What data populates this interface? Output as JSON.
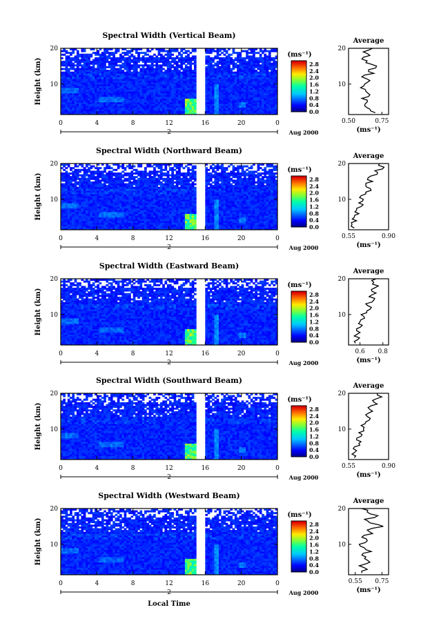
{
  "figure": {
    "x_axis_label": "Local Time",
    "date_label": "Aug 2000",
    "day_marker": "2"
  },
  "chart_data": [
    {
      "type": "heatmap",
      "title": "Spectral Width (Vertical Beam)",
      "xlabel": "",
      "ylabel": "Height (km)",
      "xlim": [
        0,
        24
      ],
      "ylim": [
        1.5,
        20
      ],
      "xticks": [
        "0",
        "4",
        "8",
        "12",
        "16",
        "20",
        "0"
      ],
      "yticks": [
        "10",
        "20"
      ],
      "colorbar": {
        "unit": "(ms⁻¹)",
        "range": [
          0.0,
          3.0
        ],
        "ticks": [
          "2.8",
          "2.4",
          "2.0",
          "1.6",
          "1.2",
          "0.8",
          "0.4",
          "0.0"
        ]
      },
      "gap": [
        14.8,
        15.8
      ],
      "profile": {
        "title": "Average",
        "xlabel": "(ms⁻¹)",
        "xlim": [
          0.5,
          0.8
        ],
        "xticks": [
          "0.50",
          "0.75"
        ],
        "yticks": [
          "10",
          "20"
        ],
        "heights": [
          2,
          3,
          4,
          5,
          6,
          7,
          8,
          9,
          10,
          11,
          12,
          13,
          14,
          15,
          16,
          17,
          18,
          19,
          20
        ],
        "values": [
          0.7,
          0.66,
          0.62,
          0.64,
          0.6,
          0.66,
          0.63,
          0.59,
          0.62,
          0.66,
          0.6,
          0.69,
          0.65,
          0.71,
          0.63,
          0.6,
          0.66,
          0.61,
          0.68
        ]
      }
    },
    {
      "type": "heatmap",
      "title": "Spectral Width (Northward Beam)",
      "xlabel": "",
      "ylabel": "Height (km)",
      "xlim": [
        0,
        24
      ],
      "ylim": [
        1.5,
        20
      ],
      "xticks": [
        "0",
        "4",
        "8",
        "12",
        "16",
        "20",
        "0"
      ],
      "yticks": [
        "10",
        "20"
      ],
      "colorbar": {
        "unit": "(ms⁻¹)",
        "range": [
          0.0,
          3.0
        ],
        "ticks": [
          "2.8",
          "2.4",
          "2.0",
          "1.6",
          "1.2",
          "0.8",
          "0.4",
          "0.0"
        ]
      },
      "gap": [
        14.8,
        15.8
      ],
      "profile": {
        "title": "Average",
        "xlabel": "(ms⁻¹)",
        "xlim": [
          0.55,
          0.9
        ],
        "xticks": [
          "0.55",
          "0.90"
        ],
        "yticks": [
          "10",
          "20"
        ],
        "heights": [
          2,
          3,
          4,
          5,
          6,
          7,
          8,
          9,
          10,
          11,
          12,
          13,
          14,
          15,
          16,
          17,
          18,
          19,
          20
        ],
        "values": [
          0.6,
          0.58,
          0.62,
          0.6,
          0.64,
          0.62,
          0.66,
          0.64,
          0.68,
          0.66,
          0.7,
          0.74,
          0.7,
          0.76,
          0.72,
          0.8,
          0.78,
          0.86,
          0.82
        ]
      }
    },
    {
      "type": "heatmap",
      "title": "Spectral Width (Eastward Beam)",
      "xlabel": "",
      "ylabel": "Height (km)",
      "xlim": [
        0,
        24
      ],
      "ylim": [
        1.5,
        20
      ],
      "xticks": [
        "0",
        "4",
        "8",
        "12",
        "16",
        "20",
        "0"
      ],
      "yticks": [
        "10",
        "20"
      ],
      "colorbar": {
        "unit": "(ms⁻¹)",
        "range": [
          0.0,
          3.0
        ],
        "ticks": [
          "2.8",
          "2.4",
          "2.0",
          "1.6",
          "1.2",
          "0.8",
          "0.4",
          "0.0"
        ]
      },
      "gap": [
        14.8,
        15.8
      ],
      "profile": {
        "title": "Average",
        "xlabel": "(ms⁻¹)",
        "xlim": [
          0.5,
          0.85
        ],
        "xticks": [
          "0.6",
          "0.8"
        ],
        "yticks": [
          "10",
          "20"
        ],
        "heights": [
          2,
          3,
          4,
          5,
          6,
          7,
          8,
          9,
          10,
          11,
          12,
          13,
          14,
          15,
          16,
          17,
          18,
          19,
          20
        ],
        "values": [
          0.56,
          0.58,
          0.55,
          0.6,
          0.57,
          0.62,
          0.6,
          0.64,
          0.61,
          0.66,
          0.7,
          0.65,
          0.72,
          0.68,
          0.74,
          0.7,
          0.76,
          0.72,
          0.74
        ]
      }
    },
    {
      "type": "heatmap",
      "title": "Spectral Width (Southward Beam)",
      "xlabel": "",
      "ylabel": "Height (km)",
      "xlim": [
        0,
        24
      ],
      "ylim": [
        1.5,
        20
      ],
      "xticks": [
        "0",
        "4",
        "8",
        "12",
        "16",
        "20",
        "0"
      ],
      "yticks": [
        "10",
        "20"
      ],
      "colorbar": {
        "unit": "(ms⁻¹)",
        "range": [
          0.0,
          3.0
        ],
        "ticks": [
          "2.8",
          "2.4",
          "2.0",
          "1.6",
          "1.2",
          "0.8",
          "0.4",
          "0.0"
        ]
      },
      "gap": [
        14.8,
        15.8
      ],
      "profile": {
        "title": "Average",
        "xlabel": "(ms⁻¹)",
        "xlim": [
          0.55,
          0.9
        ],
        "xticks": [
          "0.55",
          "0.90"
        ],
        "yticks": [
          "10",
          "20"
        ],
        "heights": [
          2,
          3,
          4,
          5,
          6,
          7,
          8,
          9,
          10,
          11,
          12,
          13,
          14,
          15,
          16,
          17,
          18,
          19,
          20
        ],
        "values": [
          0.6,
          0.58,
          0.62,
          0.6,
          0.64,
          0.62,
          0.66,
          0.64,
          0.68,
          0.66,
          0.7,
          0.74,
          0.7,
          0.76,
          0.72,
          0.8,
          0.76,
          0.84,
          0.8
        ]
      }
    },
    {
      "type": "heatmap",
      "title": "Spectral Width (Westward Beam)",
      "xlabel": "Local Time",
      "ylabel": "Height (km)",
      "xlim": [
        0,
        24
      ],
      "ylim": [
        1.5,
        20
      ],
      "xticks": [
        "0",
        "4",
        "8",
        "12",
        "16",
        "20",
        "0"
      ],
      "yticks": [
        "10",
        "20"
      ],
      "colorbar": {
        "unit": "(ms⁻¹)",
        "range": [
          0.0,
          3.0
        ],
        "ticks": [
          "2.8",
          "2.4",
          "2.0",
          "1.6",
          "1.2",
          "0.8",
          "0.4",
          "0.0"
        ]
      },
      "gap": [
        14.8,
        15.8
      ],
      "profile": {
        "title": "Average",
        "xlabel": "(ms⁻¹)",
        "xlim": [
          0.5,
          0.8
        ],
        "xticks": [
          "0.55",
          "0.75"
        ],
        "yticks": [
          "10",
          "20"
        ],
        "heights": [
          2,
          3,
          4,
          5,
          6,
          7,
          8,
          9,
          10,
          11,
          12,
          13,
          14,
          15,
          16,
          17,
          18,
          19,
          20
        ],
        "values": [
          0.6,
          0.64,
          0.58,
          0.66,
          0.62,
          0.6,
          0.67,
          0.62,
          0.58,
          0.64,
          0.6,
          0.68,
          0.64,
          0.76,
          0.66,
          0.62,
          0.72,
          0.64,
          0.6
        ]
      }
    }
  ]
}
